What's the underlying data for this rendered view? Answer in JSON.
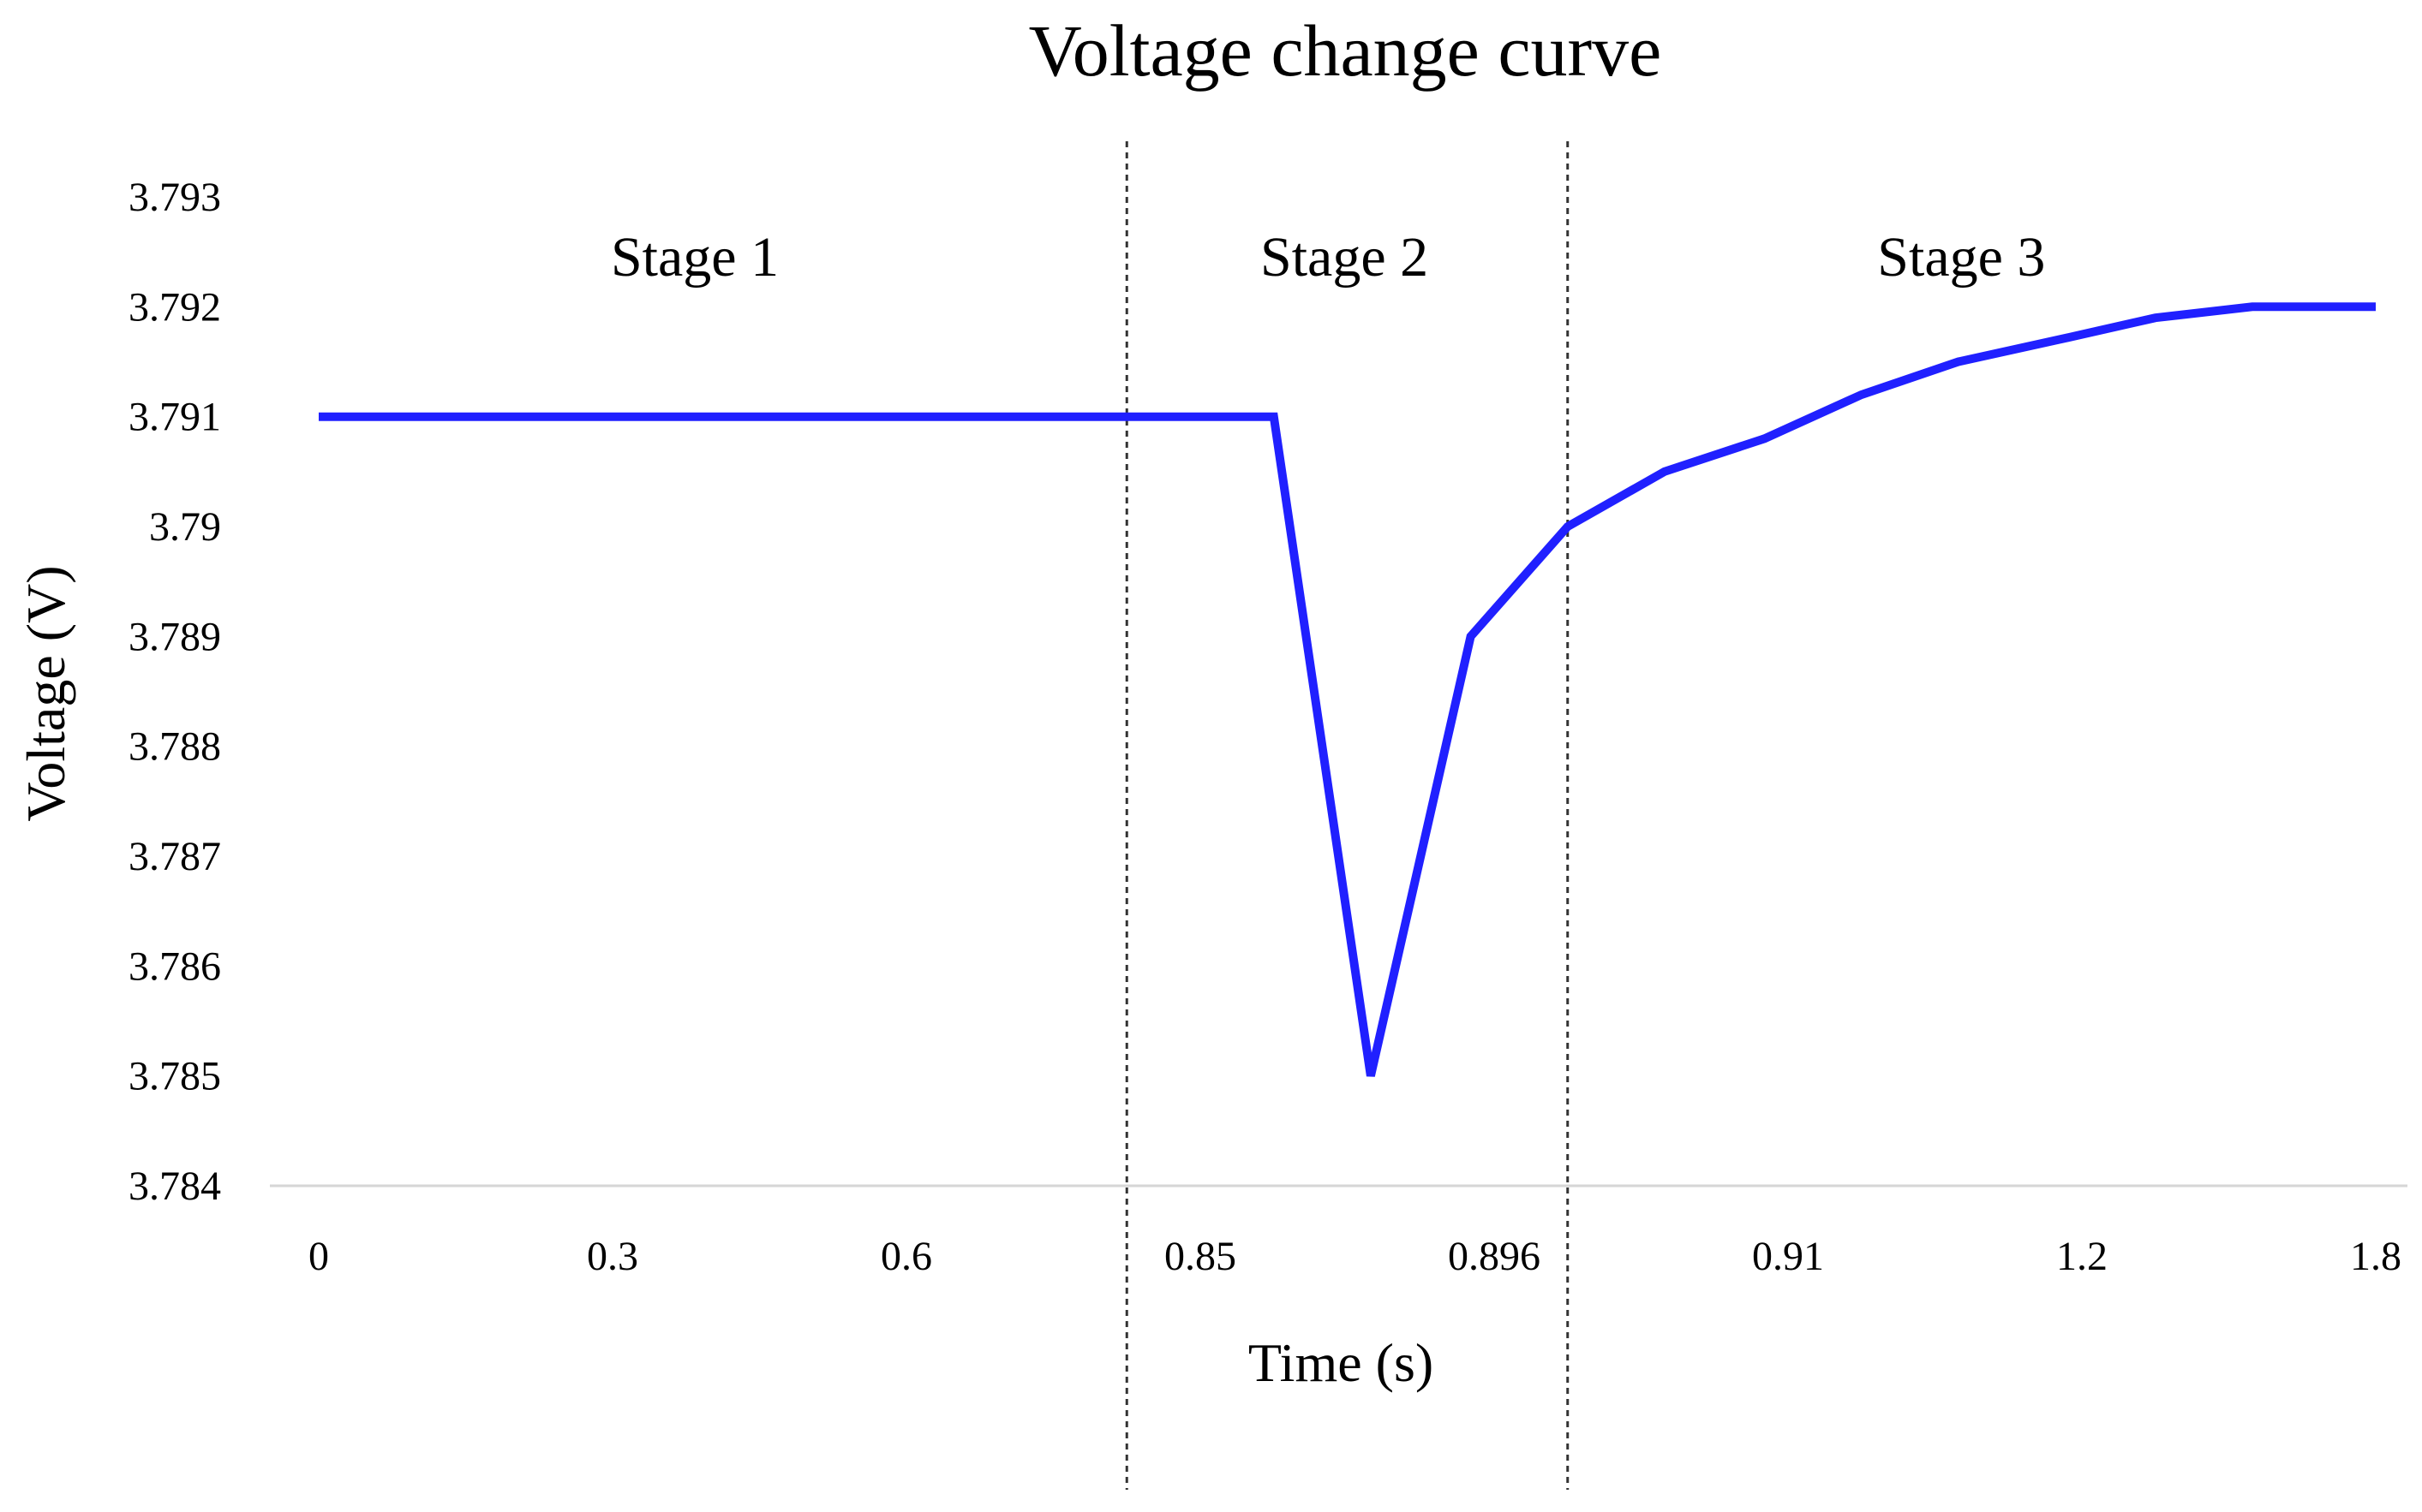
{
  "chart_data": {
    "type": "line",
    "title": "Voltage change curve",
    "xlabel": "Time (s)",
    "ylabel": "Voltage (V)",
    "categories": [
      "0",
      "0.3",
      "0.6",
      "0.85",
      "0.896",
      "0.91",
      "1.2",
      "1.8"
    ],
    "y_ticks": [
      3.784,
      3.785,
      3.786,
      3.787,
      3.788,
      3.789,
      3.79,
      3.791,
      3.792,
      3.793
    ],
    "y_tick_labels": [
      "3.784",
      "3.785",
      "3.786",
      "3.787",
      "3.788",
      "3.789",
      "3.79",
      "3.791",
      "3.792",
      "3.793"
    ],
    "ylim": [
      3.784,
      3.793
    ],
    "series": [
      {
        "name": "Voltage",
        "color": "#2020ff",
        "points": [
          {
            "x": 0,
            "y": 3.791
          },
          {
            "x": 3.25,
            "y": 3.791
          },
          {
            "x": 3.58,
            "y": 3.785
          },
          {
            "x": 3.92,
            "y": 3.789
          },
          {
            "x": 4.25,
            "y": 3.79
          },
          {
            "x": 4.58,
            "y": 3.7905
          },
          {
            "x": 4.92,
            "y": 3.7908
          },
          {
            "x": 5.25,
            "y": 3.7912
          },
          {
            "x": 5.58,
            "y": 3.7915
          },
          {
            "x": 5.92,
            "y": 3.7917
          },
          {
            "x": 6.25,
            "y": 3.7919
          },
          {
            "x": 6.58,
            "y": 3.792
          },
          {
            "x": 7,
            "y": 3.792
          }
        ]
      }
    ],
    "stage_dividers": [
      2.75,
      4.25
    ],
    "stages": [
      {
        "label": "Stage 1",
        "x_center": 1.28
      },
      {
        "label": "Stage 2",
        "x_center": 3.49
      },
      {
        "label": "Stage 3",
        "x_center": 5.59
      }
    ],
    "grid": false
  }
}
